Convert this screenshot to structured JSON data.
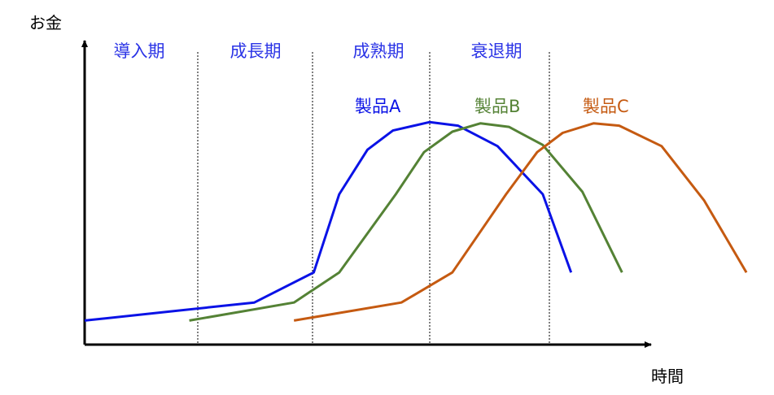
{
  "chart_data": {
    "type": "line",
    "title": "",
    "ylabel": "お金",
    "xlabel": "時間",
    "grid": false,
    "legend": "none",
    "axis_ticks": "none",
    "phases": [
      "導入期",
      "成長期",
      "成熟期",
      "衰退期"
    ],
    "colors": {
      "axis": "#000000",
      "phase_text": "#2a33e6",
      "divider": "#000000"
    },
    "series": [
      {
        "name": "製品A",
        "color": "#0a12e6",
        "points": [
          [
            0,
            1.0
          ],
          [
            3.0,
            1.75
          ],
          [
            4.05,
            3.0
          ],
          [
            4.5,
            6.25
          ],
          [
            5.0,
            8.1
          ],
          [
            5.45,
            8.9
          ],
          [
            6.1,
            9.25
          ],
          [
            6.6,
            9.1
          ],
          [
            7.3,
            8.25
          ],
          [
            8.1,
            6.25
          ],
          [
            8.6,
            3.0
          ]
        ]
      },
      {
        "name": "製品B",
        "color": "#548235",
        "points": [
          [
            1.85,
            1.0
          ],
          [
            3.7,
            1.75
          ],
          [
            4.5,
            3.0
          ],
          [
            5.5,
            6.25
          ],
          [
            6.0,
            8.0
          ],
          [
            6.5,
            8.85
          ],
          [
            7.0,
            9.2
          ],
          [
            7.5,
            9.05
          ],
          [
            8.1,
            8.3
          ],
          [
            8.8,
            6.35
          ],
          [
            9.5,
            3.0
          ]
        ]
      },
      {
        "name": "製品C",
        "color": "#c55a11",
        "points": [
          [
            3.7,
            1.0
          ],
          [
            5.6,
            1.75
          ],
          [
            6.5,
            3.0
          ],
          [
            7.45,
            6.25
          ],
          [
            8.0,
            8.0
          ],
          [
            8.45,
            8.8
          ],
          [
            9.0,
            9.2
          ],
          [
            9.45,
            9.1
          ],
          [
            10.2,
            8.25
          ],
          [
            10.95,
            6.0
          ],
          [
            11.7,
            3.0
          ]
        ]
      }
    ]
  }
}
